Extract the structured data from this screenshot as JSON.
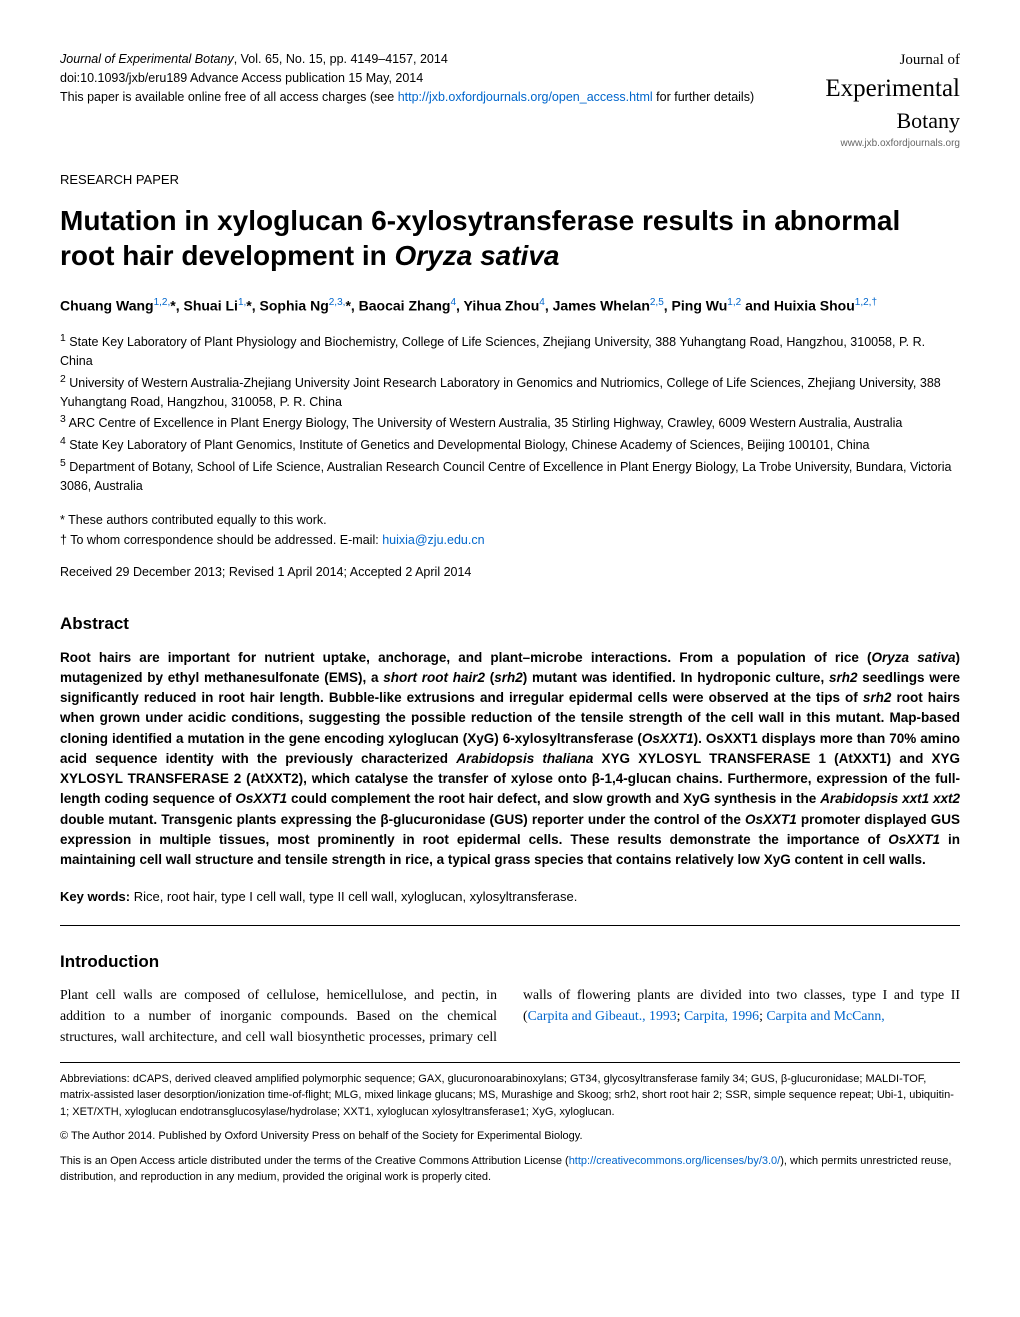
{
  "meta": {
    "journal_line": "Journal of Experimental Botany",
    "citation": ", Vol. 65, No. 15, pp. 4149–4157, 2014",
    "doi": "doi:10.1093/jxb/eru189   Advance Access publication 15 May, 2014",
    "oa_prefix": "This paper is available online free of all access charges (see ",
    "oa_link": "http://jxb.oxfordjournals.org/open_access.html",
    "oa_suffix": " for further details)"
  },
  "logo": {
    "line1": "Journal of",
    "line2": "Experimental",
    "line3": "Botany",
    "url": "www.jxb.oxfordjournals.org"
  },
  "section_label": "RESEARCH PAPER",
  "title_pre": "Mutation in xyloglucan 6-xylosytransferase results in abnormal root hair development in ",
  "title_ital": "Oryza sativa",
  "authors_html": "Chuang Wang<sup>1,2,</sup>*, Shuai Li<sup>1,</sup>*, Sophia Ng<sup>2,3,</sup>*, Baocai Zhang<sup>4</sup>, Yihua Zhou<sup>4</sup>, James Whelan<sup>2,5</sup>, Ping Wu<sup>1,2</sup> and Huixia Shou<sup>1,2,†</sup>",
  "affiliations": [
    "State Key Laboratory of Plant Physiology and Biochemistry, College of Life Sciences, Zhejiang University, 388 Yuhangtang Road, Hangzhou, 310058, P. R. China",
    "University of Western Australia-Zhejiang University Joint Research Laboratory in Genomics and Nutriomics, College of Life Sciences, Zhejiang University, 388 Yuhangtang Road, Hangzhou, 310058, P. R. China",
    "ARC Centre of Excellence in Plant Energy Biology, The University of Western Australia, 35 Stirling Highway, Crawley, 6009 Western Australia, Australia",
    "State Key Laboratory of Plant Genomics, Institute of Genetics and Developmental Biology, Chinese Academy of Sciences, Beijing 100101, China",
    "Department of Botany, School of Life Science, Australian Research Council Centre of Excellence in Plant Energy Biology, La Trobe University, Bundara, Victoria 3086, Australia"
  ],
  "note_equal": "* These authors contributed equally to this work.",
  "note_corr_prefix": "† To whom correspondence should be addressed. E-mail: ",
  "note_corr_email": "huixia@zju.edu.cn",
  "received": "Received 29 December 2013; Revised 1 April 2014; Accepted 2 April 2014",
  "abstract_heading": "Abstract",
  "abstract_text": "Root hairs are important for nutrient uptake, anchorage, and plant–microbe interactions. From a population of rice (<i>Oryza sativa</i>) mutagenized by ethyl methanesulfonate (EMS), a <i>short root hair2</i> (<i>srh2</i>) mutant was identified. In hydroponic culture, <i>srh2</i> seedlings were significantly reduced in root hair length. Bubble-like extrusions and irregular epidermal cells were observed at the tips of <i>srh2</i> root hairs when grown under acidic conditions, suggesting the possible reduction of the tensile strength of the cell wall in this mutant. Map-based cloning identified a mutation in the gene encoding xyloglucan (XyG) 6-xylosyltransferase (<i>OsXXT1</i>). OsXXT1 displays more than 70% amino acid sequence identity with the previously characterized <i>Arabidopsis thaliana</i> XYG XYLOSYL TRANSFERASE 1 (AtXXT1) and XYG XYLOSYL TRANSFERASE 2 (AtXXT2), which catalyse the transfer of xylose onto β-1,4-glucan chains. Furthermore, expression of the full-length coding sequence of <i>OsXXT1</i> could complement the root hair defect, and slow growth and XyG synthesis in the <i>Arabidopsis xxt1 xxt2</i> double mutant. Transgenic plants expressing the β-glucuronidase (GUS) reporter under the control of the <i>OsXXT1</i> promoter displayed GUS expression in multiple tissues, most prominently in root epidermal cells. These results demonstrate the importance of <i>OsXXT1</i> in maintaining cell wall structure and tensile strength in rice, a typical grass species that contains relatively low XyG content in cell walls.",
  "keywords_label": "Key words:",
  "keywords_text": "  Rice, root hair, type I cell wall, type II cell wall, xyloglucan, xylosyltransferase.",
  "intro_heading": "Introduction",
  "intro_p1": "Plant cell walls are composed of cellulose, hemicellulose, and pectin, in addition to a number of inorganic compounds. Based on the chemical structures, wall architecture, and cell wall biosynthetic processes, primary cell walls of flowering plants are divided into two classes, type I and type II (",
  "intro_cite1": "Carpita and Gibeaut., 1993",
  "intro_sep1": "; ",
  "intro_cite2": "Carpita, 1996",
  "intro_sep2": "; ",
  "intro_cite3": "Carpita and McCann,",
  "footer": {
    "abbrev": "Abbreviations: dCAPS, derived cleaved amplified polymorphic sequence; GAX, glucuronoarabinoxylans; GT34, glycosyltransferase family 34; GUS, β-glucuronidase; MALDI-TOF, matrix-assisted laser desorption/ionization time-of-flight; MLG, mixed linkage glucans; MS, Murashige and Skoog; srh2, short root hair 2; SSR, simple sequence repeat; Ubi-1, ubiquitin-1; XET/XTH, xyloglucan endotransglucosylase/hydrolase; XXT1, xyloglucan xylosyltransferase1; XyG, xyloglucan.",
    "copyright": "© The Author 2014. Published by Oxford University Press on behalf of the Society for Experimental Biology.",
    "license_pre": "This is an Open Access article distributed under the terms of the Creative Commons Attribution License (",
    "license_link": "http://creativecommons.org/licenses/by/3.0/",
    "license_post": "), which permits unrestricted reuse, distribution, and reproduction in any medium, provided the original work is properly cited."
  }
}
